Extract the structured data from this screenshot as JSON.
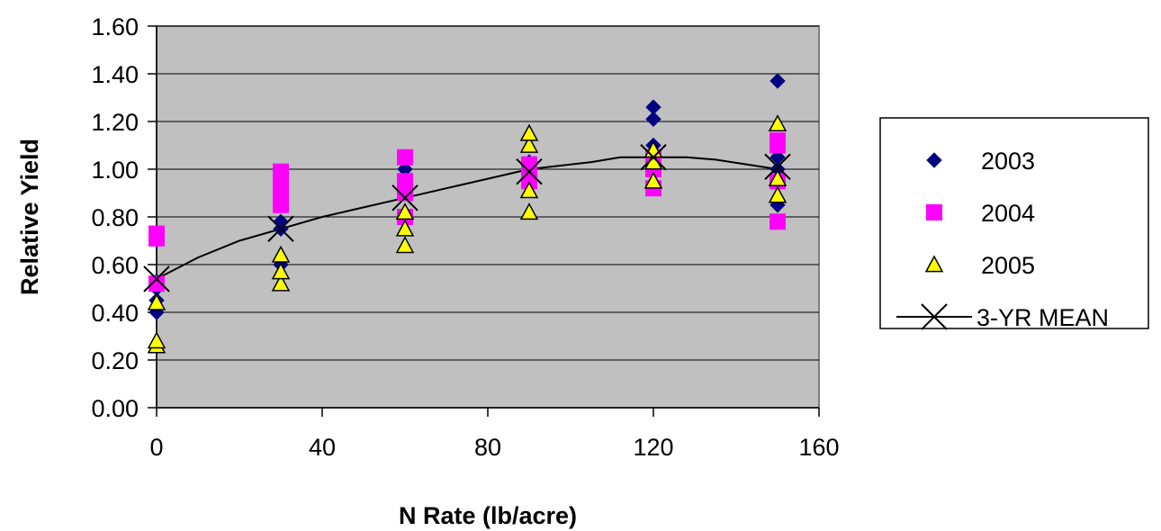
{
  "chart_data": {
    "type": "scatter",
    "title": "",
    "xlabel": "N Rate (lb/acre)",
    "ylabel": "Relative Yield",
    "xlim": [
      0,
      160
    ],
    "ylim": [
      0,
      1.6
    ],
    "xticks": [
      "0",
      "40",
      "80",
      "120",
      "160"
    ],
    "yticks": [
      "0.00",
      "0.20",
      "0.40",
      "0.60",
      "0.80",
      "1.00",
      "1.20",
      "1.40",
      "1.60"
    ],
    "grid": "horizontal",
    "plot_background": "#c0c0c0",
    "legend_position": "right",
    "series": [
      {
        "name": "2003",
        "marker": "diamond",
        "color": "#000080",
        "points": [
          [
            0,
            0.4
          ],
          [
            0,
            0.45
          ],
          [
            0,
            0.5
          ],
          [
            0,
            0.53
          ],
          [
            30,
            0.6
          ],
          [
            30,
            0.75
          ],
          [
            30,
            0.78
          ],
          [
            60,
            0.8
          ],
          [
            60,
            0.95
          ],
          [
            60,
            1.0
          ],
          [
            90,
            0.95
          ],
          [
            90,
            1.0
          ],
          [
            90,
            1.03
          ],
          [
            120,
            1.02
          ],
          [
            120,
            1.1
          ],
          [
            120,
            1.21
          ],
          [
            120,
            1.26
          ],
          [
            150,
            0.85
          ],
          [
            150,
            1.0
          ],
          [
            150,
            1.05
          ],
          [
            150,
            1.37
          ]
        ]
      },
      {
        "name": "2004",
        "marker": "square",
        "color": "#ff00ff",
        "points": [
          [
            0,
            0.52
          ],
          [
            0,
            0.71
          ],
          [
            0,
            0.73
          ],
          [
            30,
            0.85
          ],
          [
            30,
            0.9
          ],
          [
            30,
            0.95
          ],
          [
            30,
            0.99
          ],
          [
            60,
            0.8
          ],
          [
            60,
            0.9
          ],
          [
            60,
            0.95
          ],
          [
            60,
            1.05
          ],
          [
            90,
            0.95
          ],
          [
            90,
            1.0
          ],
          [
            90,
            1.02
          ],
          [
            120,
            0.92
          ],
          [
            120,
            1.0
          ],
          [
            120,
            1.05
          ],
          [
            150,
            0.78
          ],
          [
            150,
            0.95
          ],
          [
            150,
            1.1
          ],
          [
            150,
            1.12
          ]
        ]
      },
      {
        "name": "2005",
        "marker": "triangle",
        "color": "#ffff00",
        "points": [
          [
            0,
            0.26
          ],
          [
            0,
            0.28
          ],
          [
            0,
            0.44
          ],
          [
            30,
            0.52
          ],
          [
            30,
            0.57
          ],
          [
            30,
            0.64
          ],
          [
            60,
            0.68
          ],
          [
            60,
            0.75
          ],
          [
            60,
            0.82
          ],
          [
            90,
            0.82
          ],
          [
            90,
            0.91
          ],
          [
            90,
            1.1
          ],
          [
            90,
            1.15
          ],
          [
            120,
            0.95
          ],
          [
            120,
            1.03
          ],
          [
            120,
            1.08
          ],
          [
            150,
            0.89
          ],
          [
            150,
            0.96
          ],
          [
            150,
            1.19
          ]
        ]
      }
    ],
    "mean_series": {
      "name": "3-YR MEAN",
      "marker": "x",
      "color": "#000000",
      "points": [
        [
          0,
          0.54
        ],
        [
          30,
          0.75
        ],
        [
          60,
          0.88
        ],
        [
          90,
          0.99
        ],
        [
          120,
          1.05
        ],
        [
          150,
          1.01
        ]
      ],
      "curve": [
        [
          0,
          0.54
        ],
        [
          10,
          0.63
        ],
        [
          20,
          0.7
        ],
        [
          30,
          0.75
        ],
        [
          40,
          0.8
        ],
        [
          50,
          0.84
        ],
        [
          60,
          0.88
        ],
        [
          70,
          0.92
        ],
        [
          80,
          0.96
        ],
        [
          90,
          1.0
        ],
        [
          105,
          1.03
        ],
        [
          112,
          1.05
        ],
        [
          128,
          1.05
        ],
        [
          135,
          1.04
        ],
        [
          150,
          1.0
        ]
      ]
    }
  }
}
